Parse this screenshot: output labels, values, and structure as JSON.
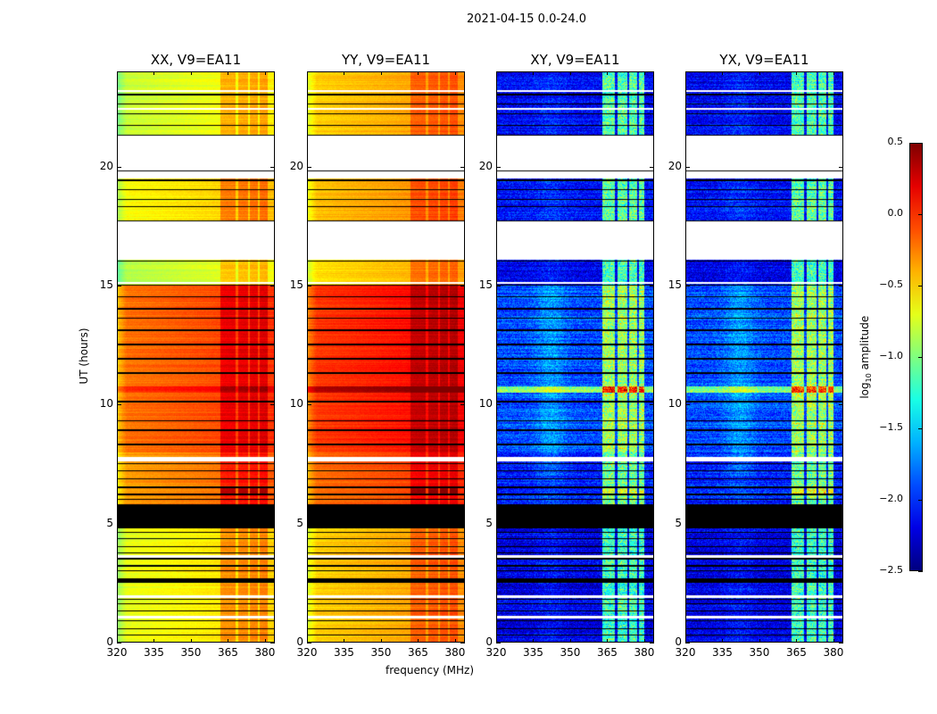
{
  "suptitle": "2021-04-15 0.0-24.0",
  "xlabel": "frequency (MHz)",
  "ylabel": "UT (hours)",
  "colorbar": {
    "label_prefix": "log",
    "label_sub": "10",
    "label_suffix": " amplitude",
    "range": [
      -2.5,
      0.5
    ],
    "ticks": [
      "0.5",
      "0.0",
      "−0.5",
      "−1.0",
      "−1.5",
      "−2.0",
      "−2.5"
    ],
    "tick_values": [
      0.5,
      0.0,
      -0.5,
      -1.0,
      -1.5,
      -2.0,
      -2.5
    ],
    "colormap": "jet"
  },
  "chart_data": [
    {
      "type": "heatmap",
      "title": "XX, V9=EA11",
      "xlim": [
        320,
        384
      ],
      "ylim": [
        0,
        24
      ],
      "xticks": [
        "320",
        "335",
        "350",
        "365",
        "380"
      ],
      "xtick_values": [
        320,
        335,
        350,
        365,
        380
      ],
      "yticks": [
        "0",
        "5",
        "10",
        "15",
        "20"
      ],
      "ytick_values": [
        0,
        5,
        10,
        15,
        20
      ],
      "segments": [
        [
          0,
          5.8,
          -0.6
        ],
        [
          5.8,
          8,
          -0.25
        ],
        [
          8,
          15,
          -0.12
        ],
        [
          15,
          16.1,
          -0.75
        ],
        [
          17.7,
          19.5,
          -0.55
        ],
        [
          21.3,
          24,
          -0.7
        ]
      ],
      "rfi_channels": [
        [
          362,
          368
        ],
        [
          369,
          373
        ],
        [
          374,
          377
        ],
        [
          378,
          381
        ]
      ],
      "rfi_offset": 0.25,
      "band_10_6": 0.1
    },
    {
      "type": "heatmap",
      "title": "YY, V9=EA11",
      "xlim": [
        320,
        384
      ],
      "ylim": [
        0,
        24
      ],
      "xticks": [
        "320",
        "335",
        "350",
        "365",
        "380"
      ],
      "xtick_values": [
        320,
        335,
        350,
        365,
        380
      ],
      "yticks": [
        "0",
        "5",
        "10",
        "15",
        "20"
      ],
      "ytick_values": [
        0,
        5,
        10,
        15,
        20
      ],
      "segments": [
        [
          0,
          5.8,
          -0.4
        ],
        [
          5.8,
          8,
          -0.1
        ],
        [
          8,
          15,
          0.05
        ],
        [
          15,
          16.1,
          -0.45
        ],
        [
          17.7,
          19.5,
          -0.35
        ],
        [
          21.3,
          24,
          -0.4
        ]
      ],
      "rfi_channels": [
        [
          362,
          368
        ],
        [
          369,
          373
        ],
        [
          374,
          377
        ],
        [
          378,
          381
        ]
      ],
      "rfi_offset": 0.2,
      "band_10_6": 0.3
    },
    {
      "type": "heatmap",
      "title": "XY, V9=EA11",
      "xlim": [
        320,
        384
      ],
      "ylim": [
        0,
        24
      ],
      "xticks": [
        "320",
        "335",
        "350",
        "365",
        "380"
      ],
      "xtick_values": [
        320,
        335,
        350,
        365,
        380
      ],
      "yticks": [
        "0",
        "5",
        "10",
        "15",
        "20"
      ],
      "ytick_values": [
        0,
        5,
        10,
        15,
        20
      ],
      "segments": [
        [
          0,
          5.8,
          -2.2
        ],
        [
          5.8,
          8,
          -2.05
        ],
        [
          8,
          15,
          -1.9
        ],
        [
          15,
          16.1,
          -2.2
        ],
        [
          17.7,
          19.5,
          -2.1
        ],
        [
          21.3,
          24,
          -2.15
        ]
      ],
      "rfi_channels": [
        [
          363,
          368
        ],
        [
          369,
          373
        ],
        [
          374,
          377
        ],
        [
          378,
          380
        ]
      ],
      "rfi_offset": 1.0,
      "band_10_6": 0.1
    },
    {
      "type": "heatmap",
      "title": "YX, V9=EA11",
      "xlim": [
        320,
        384
      ],
      "ylim": [
        0,
        24
      ],
      "xticks": [
        "320",
        "335",
        "350",
        "365",
        "380"
      ],
      "xtick_values": [
        320,
        335,
        350,
        365,
        380
      ],
      "yticks": [
        "0",
        "5",
        "10",
        "15",
        "20"
      ],
      "ytick_values": [
        0,
        5,
        10,
        15,
        20
      ],
      "segments": [
        [
          0,
          5.8,
          -2.2
        ],
        [
          5.8,
          8,
          -2.05
        ],
        [
          8,
          15,
          -1.9
        ],
        [
          15,
          16.1,
          -2.2
        ],
        [
          17.7,
          19.5,
          -2.1
        ],
        [
          21.3,
          24,
          -2.15
        ]
      ],
      "rfi_channels": [
        [
          363,
          368
        ],
        [
          369,
          373
        ],
        [
          374,
          377
        ],
        [
          378,
          380
        ]
      ],
      "rfi_offset": 1.0,
      "band_10_6": 0.1
    }
  ],
  "flagged_black_hours": [
    [
      4.8,
      5.8
    ],
    [
      2.5,
      2.7
    ],
    [
      0.3,
      0.35
    ],
    [
      0.55,
      0.6
    ],
    [
      0.9,
      0.95
    ],
    [
      1.3,
      1.35
    ],
    [
      1.6,
      1.65
    ],
    [
      1.8,
      1.85
    ],
    [
      3.0,
      3.05
    ],
    [
      3.2,
      3.25
    ],
    [
      3.5,
      3.55
    ],
    [
      3.75,
      3.8
    ],
    [
      4.0,
      4.05
    ],
    [
      4.35,
      4.4
    ],
    [
      4.6,
      4.65
    ],
    [
      6.0,
      6.05
    ],
    [
      6.2,
      6.25
    ],
    [
      6.5,
      6.55
    ],
    [
      6.85,
      6.9
    ],
    [
      7.2,
      7.25
    ],
    [
      7.5,
      7.55
    ],
    [
      8.3,
      8.35
    ],
    [
      8.9,
      8.95
    ],
    [
      9.3,
      9.35
    ],
    [
      10.1,
      10.15
    ],
    [
      11.3,
      11.35
    ],
    [
      11.9,
      11.95
    ],
    [
      12.5,
      12.55
    ],
    [
      13.1,
      13.15
    ],
    [
      13.6,
      13.65
    ],
    [
      14.0,
      14.05
    ],
    [
      14.5,
      14.55
    ],
    [
      15.0,
      15.05
    ],
    [
      16.0,
      16.05
    ],
    [
      17.7,
      17.75
    ],
    [
      18.3,
      18.35
    ],
    [
      18.6,
      18.65
    ],
    [
      19.0,
      19.05
    ],
    [
      19.4,
      19.45
    ],
    [
      19.8,
      19.85
    ],
    [
      21.3,
      21.35
    ],
    [
      21.7,
      21.75
    ],
    [
      22.2,
      22.25
    ],
    [
      22.6,
      22.65
    ],
    [
      23.0,
      23.05
    ]
  ],
  "blank_hours": [
    [
      16.1,
      17.7
    ],
    [
      19.5,
      21.3
    ],
    [
      1.0,
      1.12
    ],
    [
      1.88,
      2.0
    ],
    [
      3.58,
      3.68
    ],
    [
      7.62,
      7.8
    ],
    [
      15.08,
      15.16
    ],
    [
      22.4,
      22.48
    ],
    [
      23.15,
      23.22
    ]
  ]
}
